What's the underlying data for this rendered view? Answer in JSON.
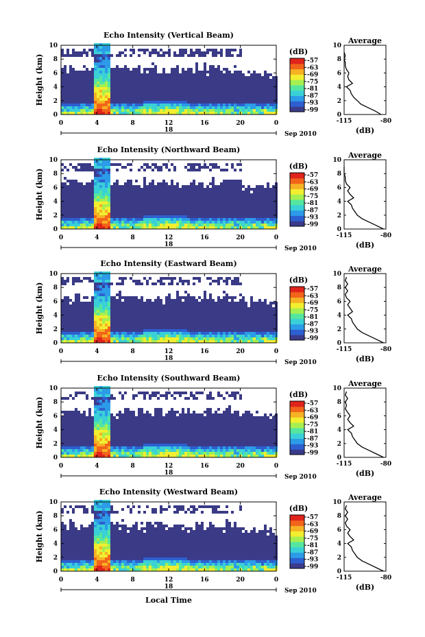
{
  "chart_data": [
    {
      "type": "heatmap",
      "title": "Echo Intensity (Vertical Beam)",
      "ylabel": "Height (km)",
      "y_ticks": [
        "0",
        "2",
        "4",
        "6",
        "8",
        "10"
      ],
      "x_ticks": [
        "0",
        "4",
        "8",
        "12",
        "16",
        "20",
        "0"
      ],
      "ylim": [
        0,
        10
      ],
      "xlim": [
        0,
        24
      ],
      "date_day": "18",
      "date_month": "Sep 2010",
      "colorbar": {
        "unit": "(dB)",
        "ticks": [
          "-57",
          "-63",
          "-69",
          "-75",
          "-81",
          "-87",
          "-93",
          "-99"
        ]
      },
      "profile": {
        "title": "Average",
        "xlabel": "(dB)",
        "x_ticks": [
          "-115",
          "-80"
        ],
        "xlim": [
          -115,
          -80
        ],
        "y_ticks": [
          "0",
          "2",
          "4",
          "6",
          "8",
          "10"
        ],
        "points": [
          [
            -84,
            0
          ],
          [
            -89,
            0.5
          ],
          [
            -95,
            1
          ],
          [
            -101,
            1.5
          ],
          [
            -104,
            2
          ],
          [
            -107,
            2.5
          ],
          [
            -109,
            3
          ],
          [
            -110,
            3.5
          ],
          [
            -113,
            4
          ],
          [
            -108,
            4.5
          ],
          [
            -111,
            5
          ],
          [
            -112,
            5.5
          ],
          [
            -111,
            6
          ],
          [
            -113,
            6.5
          ],
          [
            -114,
            7
          ],
          [
            -114,
            7.5
          ],
          [
            -115,
            8
          ],
          [
            -114,
            8.5
          ],
          [
            -115,
            9
          ]
        ]
      }
    },
    {
      "type": "heatmap",
      "title": "Echo Intensity (Northward Beam)",
      "ylabel": "Height (km)",
      "y_ticks": [
        "0",
        "2",
        "4",
        "6",
        "8",
        "10"
      ],
      "x_ticks": [
        "0",
        "4",
        "8",
        "12",
        "16",
        "20",
        "0"
      ],
      "ylim": [
        0,
        10
      ],
      "xlim": [
        0,
        24
      ],
      "date_day": "18",
      "date_month": "Sep 2010",
      "colorbar": {
        "unit": "(dB)",
        "ticks": [
          "-57",
          "-63",
          "-69",
          "-75",
          "-81",
          "-87",
          "-93",
          "-99"
        ]
      },
      "profile": {
        "title": "Average",
        "xlabel": "(dB)",
        "x_ticks": [
          "-115",
          "-80"
        ],
        "xlim": [
          -115,
          -80
        ],
        "y_ticks": [
          "0",
          "2",
          "4",
          "6",
          "8",
          "10"
        ],
        "points": [
          [
            -82,
            0
          ],
          [
            -88,
            0.5
          ],
          [
            -94,
            1
          ],
          [
            -100,
            1.5
          ],
          [
            -104,
            2
          ],
          [
            -106,
            2.5
          ],
          [
            -108,
            3
          ],
          [
            -109,
            3.5
          ],
          [
            -112,
            4
          ],
          [
            -107,
            4.5
          ],
          [
            -110,
            5
          ],
          [
            -112,
            5.5
          ],
          [
            -110,
            6
          ],
          [
            -113,
            6.5
          ],
          [
            -114,
            7
          ],
          [
            -114,
            7.5
          ],
          [
            -115,
            8
          ],
          [
            -115,
            9
          ]
        ]
      }
    },
    {
      "type": "heatmap",
      "title": "Echo Intensity (Eastward Beam)",
      "ylabel": "Height (km)",
      "y_ticks": [
        "0",
        "2",
        "4",
        "6",
        "8",
        "10"
      ],
      "x_ticks": [
        "0",
        "4",
        "8",
        "12",
        "16",
        "20",
        "0"
      ],
      "ylim": [
        0,
        10
      ],
      "xlim": [
        0,
        24
      ],
      "date_day": "18",
      "date_month": "Sep 2010",
      "colorbar": {
        "unit": "(dB)",
        "ticks": [
          "-57",
          "-63",
          "-69",
          "-75",
          "-81",
          "-87",
          "-93",
          "-99"
        ]
      },
      "profile": {
        "title": "Average",
        "xlabel": "(dB)",
        "x_ticks": [
          "-115",
          "-80"
        ],
        "xlim": [
          -115,
          -80
        ],
        "y_ticks": [
          "0",
          "2",
          "4",
          "6",
          "8",
          "10"
        ],
        "points": [
          [
            -82,
            0
          ],
          [
            -88,
            0.5
          ],
          [
            -94,
            1
          ],
          [
            -100,
            1.5
          ],
          [
            -104,
            2
          ],
          [
            -106,
            2.5
          ],
          [
            -108,
            3
          ],
          [
            -109,
            3.5
          ],
          [
            -112,
            4
          ],
          [
            -108,
            4.5
          ],
          [
            -110,
            5
          ],
          [
            -112,
            5.5
          ],
          [
            -110,
            6
          ],
          [
            -113,
            6.5
          ],
          [
            -114,
            7
          ],
          [
            -112,
            7.5
          ],
          [
            -114,
            8
          ],
          [
            -112,
            8.5
          ],
          [
            -114,
            9
          ],
          [
            -113,
            9.5
          ]
        ]
      }
    },
    {
      "type": "heatmap",
      "title": "Echo Intensity (Southward Beam)",
      "ylabel": "Height (km)",
      "y_ticks": [
        "0",
        "2",
        "4",
        "6",
        "8",
        "10"
      ],
      "x_ticks": [
        "0",
        "4",
        "8",
        "12",
        "16",
        "20",
        "0"
      ],
      "ylim": [
        0,
        10
      ],
      "xlim": [
        0,
        24
      ],
      "date_day": "18",
      "date_month": "Sep 2010",
      "colorbar": {
        "unit": "(dB)",
        "ticks": [
          "-57",
          "-63",
          "-69",
          "-75",
          "-81",
          "-87",
          "-93",
          "-99"
        ]
      },
      "profile": {
        "title": "Average",
        "xlabel": "(dB)",
        "x_ticks": [
          "-115",
          "-80"
        ],
        "xlim": [
          -115,
          -80
        ],
        "y_ticks": [
          "0",
          "2",
          "4",
          "6",
          "8",
          "10"
        ],
        "points": [
          [
            -82,
            0
          ],
          [
            -88,
            0.5
          ],
          [
            -94,
            1
          ],
          [
            -100,
            1.5
          ],
          [
            -104,
            2
          ],
          [
            -106,
            2.5
          ],
          [
            -108,
            3
          ],
          [
            -109,
            3.5
          ],
          [
            -112,
            4
          ],
          [
            -107,
            4.5
          ],
          [
            -110,
            5
          ],
          [
            -112,
            5.5
          ],
          [
            -110,
            6
          ],
          [
            -112,
            6.5
          ],
          [
            -114,
            7
          ],
          [
            -113,
            7.5
          ],
          [
            -114,
            8
          ],
          [
            -112,
            8.5
          ],
          [
            -114,
            9
          ],
          [
            -113,
            9.5
          ]
        ]
      }
    },
    {
      "type": "heatmap",
      "title": "Echo Intensity (Westward Beam)",
      "ylabel": "Height (km)",
      "y_ticks": [
        "0",
        "2",
        "4",
        "6",
        "8",
        "10"
      ],
      "x_ticks": [
        "0",
        "4",
        "8",
        "12",
        "16",
        "20",
        "0"
      ],
      "ylim": [
        0,
        10
      ],
      "xlim": [
        0,
        24
      ],
      "date_day": "18",
      "date_month": "Sep 2010",
      "xlabel": "Local Time",
      "colorbar": {
        "unit": "(dB)",
        "ticks": [
          "-57",
          "-63",
          "-69",
          "-75",
          "-81",
          "-87",
          "-93",
          "-99"
        ]
      },
      "profile": {
        "title": "Average",
        "xlabel": "(dB)",
        "x_ticks": [
          "-115",
          "-80"
        ],
        "xlim": [
          -115,
          -80
        ],
        "y_ticks": [
          "0",
          "2",
          "4",
          "6",
          "8",
          "10"
        ],
        "points": [
          [
            -82,
            0
          ],
          [
            -88,
            0.5
          ],
          [
            -94,
            1
          ],
          [
            -100,
            1.5
          ],
          [
            -104,
            2
          ],
          [
            -106,
            2.5
          ],
          [
            -108,
            3
          ],
          [
            -109,
            3.5
          ],
          [
            -112,
            4
          ],
          [
            -107,
            4.5
          ],
          [
            -110,
            5
          ],
          [
            -112,
            5.5
          ],
          [
            -110,
            6
          ],
          [
            -113,
            6.5
          ],
          [
            -114,
            7
          ],
          [
            -112,
            7.5
          ],
          [
            -114,
            8
          ],
          [
            -112,
            8.5
          ],
          [
            -114,
            9
          ],
          [
            -113,
            9.5
          ]
        ]
      }
    }
  ],
  "colors": {
    "background_echo": "#3a3a86",
    "colormap": [
      "#3b3b8c",
      "#2d5fd0",
      "#2c9be8",
      "#39d0d8",
      "#54e6a0",
      "#a6ef50",
      "#f2ee30",
      "#f6b224",
      "#f2641a",
      "#e0241c"
    ]
  }
}
